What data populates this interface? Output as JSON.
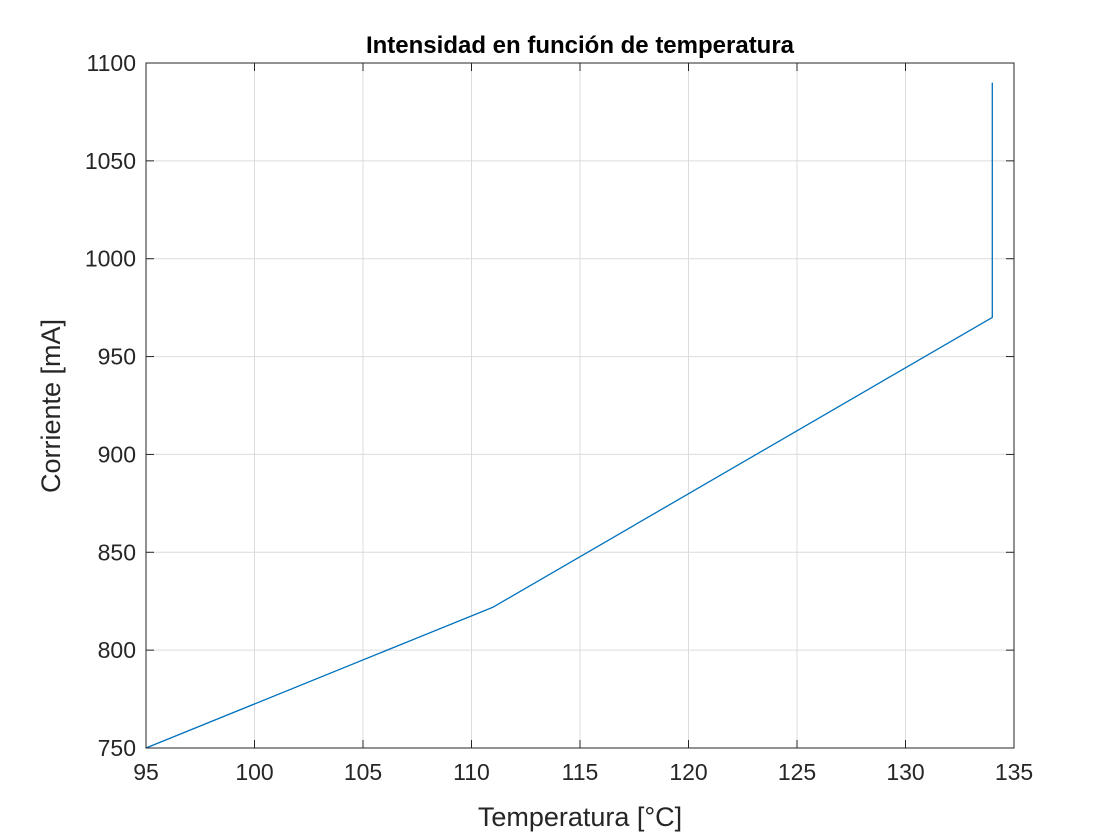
{
  "chart_data": {
    "type": "line",
    "title": "Intensidad en función de temperatura",
    "xlabel": "Temperatura [°C]",
    "ylabel": "Corriente [mA]",
    "xlim": [
      95,
      135
    ],
    "ylim": [
      750,
      1100
    ],
    "xticks": [
      95,
      100,
      105,
      110,
      115,
      120,
      125,
      130,
      135
    ],
    "yticks": [
      750,
      800,
      850,
      900,
      950,
      1000,
      1050,
      1100
    ],
    "grid": true,
    "series": [
      {
        "x": [
          95,
          111,
          134,
          134
        ],
        "y": [
          750,
          822,
          970,
          1090
        ],
        "color": "#0072BD"
      }
    ],
    "colors": {
      "axis": "#262626",
      "grid": "#dcdcdc",
      "line": "#0072BD"
    }
  }
}
